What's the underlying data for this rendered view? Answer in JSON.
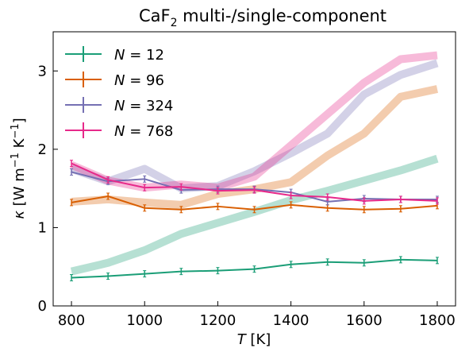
{
  "chart_data": {
    "type": "line",
    "title": {
      "text": "CaF",
      "sub": "2",
      "rest": " multi-/single-component"
    },
    "xlabel": {
      "var": "T",
      "rest": " [K]"
    },
    "ylabel": {
      "var": "κ",
      "pre": " [W m",
      "exp1": "−1",
      "mid": " K",
      "exp2": "−1",
      "post": "]"
    },
    "xlim": [
      750,
      1850
    ],
    "ylim": [
      0,
      3.5
    ],
    "xticks": [
      "800",
      "1000",
      "1200",
      "1400",
      "1600",
      "1800"
    ],
    "yticks": [
      "0",
      "1",
      "2",
      "3"
    ],
    "legend_position": "upper-left",
    "x": [
      800,
      900,
      1000,
      1100,
      1200,
      1300,
      1400,
      1500,
      1600,
      1700,
      1800
    ],
    "series": [
      {
        "name": "N = 12",
        "label_var": "N",
        "label_val": "12",
        "color": "#1b9e77",
        "values": [
          0.36,
          0.38,
          0.41,
          0.44,
          0.45,
          0.47,
          0.53,
          0.56,
          0.55,
          0.59,
          0.58
        ],
        "band": [
          0.44,
          0.55,
          0.71,
          0.92,
          1.06,
          1.2,
          1.35,
          1.47,
          1.6,
          1.73,
          1.88
        ]
      },
      {
        "name": "N = 96",
        "label_var": "N",
        "label_val": "96",
        "color": "#d95f02",
        "values": [
          1.32,
          1.4,
          1.25,
          1.23,
          1.27,
          1.23,
          1.29,
          1.25,
          1.23,
          1.24,
          1.28
        ],
        "band": [
          1.33,
          1.36,
          1.32,
          1.29,
          1.43,
          1.49,
          1.58,
          1.92,
          2.2,
          2.67,
          2.77
        ]
      },
      {
        "name": "N = 324",
        "label_var": "N",
        "label_val": "324",
        "color": "#7570b3",
        "values": [
          1.71,
          1.59,
          1.62,
          1.48,
          1.49,
          1.49,
          1.45,
          1.33,
          1.37,
          1.36,
          1.36
        ],
        "band": [
          1.75,
          1.59,
          1.75,
          1.5,
          1.53,
          1.72,
          1.95,
          2.2,
          2.7,
          2.95,
          3.1
        ]
      },
      {
        "name": "N = 768",
        "label_var": "N",
        "label_val": "768",
        "color": "#e7298a",
        "values": [
          1.82,
          1.61,
          1.51,
          1.52,
          1.47,
          1.48,
          1.41,
          1.39,
          1.34,
          1.36,
          1.34
        ],
        "band": [
          1.8,
          1.6,
          1.51,
          1.55,
          1.51,
          1.65,
          2.05,
          2.45,
          2.85,
          3.15,
          3.2
        ]
      }
    ]
  }
}
